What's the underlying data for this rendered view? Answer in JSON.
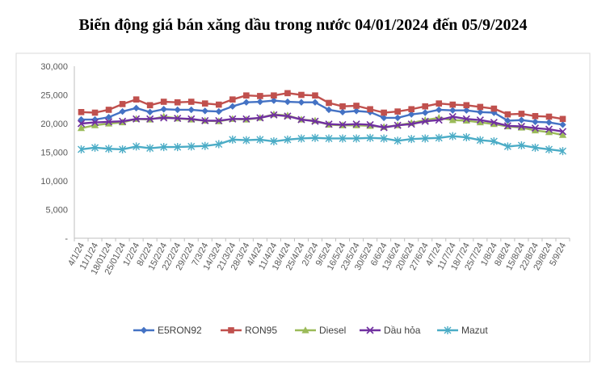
{
  "chart_data": {
    "type": "line",
    "title": "Biến động giá bán xăng dầu trong nước 04/01/2024 đến 05/9/2024",
    "xlabel": "",
    "ylabel": "",
    "ylim": [
      0,
      30000
    ],
    "yticks": [
      0,
      5000,
      10000,
      15000,
      20000,
      25000,
      30000
    ],
    "ytick_labels": [
      "-",
      "5,000",
      "10,000",
      "15,000",
      "20,000",
      "25,000",
      "30,000"
    ],
    "grid": false,
    "legend_position": "bottom",
    "categories": [
      "4/1/24",
      "11/1/24",
      "18/01/24",
      "25/01/24",
      "1/2/24",
      "8/2/24",
      "15/2/24",
      "22/2/24",
      "29/2/24",
      "7/3/24",
      "14/3/24",
      "21/3/24",
      "28/3/24",
      "4/4/24",
      "11/4/24",
      "18/4/24",
      "25/4/24",
      "2/5/24",
      "9/5/24",
      "16/5/24",
      "23/5/24",
      "30/5/24",
      "6/6/24",
      "13/6/24",
      "20/6/24",
      "27/6/24",
      "4/7/24",
      "11/7/24",
      "18/7/24",
      "25/7/24",
      "1/8/24",
      "8/8/24",
      "15/8/24",
      "22/8/24",
      "29/8/24",
      "5/9/24"
    ],
    "tick_labels": [
      "4/1/24",
      "11/1/24",
      "18/01/24",
      "25/01/24",
      "1/2/24",
      "8/2/24",
      "15/2/24",
      "22/2/24",
      "29/2/24",
      "7/3/24",
      "14/3/24",
      "21/3/24",
      "28/3/24",
      "4/4/24",
      "11/4/24",
      "18/4/24",
      "25/4/24",
      "2/5/24",
      "9/5/24",
      "16/5/24",
      "23/5/24",
      "30/5/24",
      "6/6/24",
      "13/6/24",
      "20/6/24",
      "27/6/24",
      "4/7/24",
      "11/7/24",
      "18/7/24",
      "25/7/24",
      "1/8/24",
      "8/8/24",
      "15/8/24",
      "22/8/24",
      "29/8/24",
      "5/9/24"
    ],
    "series": [
      {
        "name": "E5RON92",
        "color": "#4472C4",
        "marker": "diamond",
        "values": [
          20700,
          20700,
          21100,
          22100,
          22700,
          22000,
          22500,
          22400,
          22400,
          22200,
          22100,
          23000,
          23700,
          23800,
          24000,
          23800,
          23700,
          23700,
          22400,
          22000,
          22200,
          22000,
          21000,
          21000,
          21600,
          21900,
          22400,
          22300,
          22300,
          22000,
          21900,
          20500,
          20600,
          20300,
          20200,
          19800
        ]
      },
      {
        "name": "RON95",
        "color": "#C0504D",
        "marker": "square",
        "values": [
          22000,
          21900,
          22400,
          23400,
          24200,
          23200,
          23800,
          23700,
          23800,
          23500,
          23300,
          24200,
          24900,
          24800,
          24900,
          25300,
          25000,
          24900,
          23600,
          23000,
          23100,
          22500,
          21900,
          22100,
          22500,
          23000,
          23500,
          23300,
          23200,
          22900,
          22600,
          21600,
          21700,
          21300,
          21200,
          20800
        ]
      },
      {
        "name": "Diesel",
        "color": "#9BBB59",
        "marker": "triangle",
        "values": [
          19200,
          19700,
          20000,
          20200,
          20800,
          20700,
          21200,
          20900,
          20700,
          20500,
          20400,
          20800,
          20700,
          21000,
          21600,
          21400,
          20700,
          20500,
          19800,
          19700,
          19700,
          19600,
          19400,
          19700,
          20100,
          20600,
          21000,
          20600,
          20500,
          20200,
          19900,
          19500,
          19300,
          18800,
          18500,
          18000
        ]
      },
      {
        "name": "Dầu hỏa",
        "color": "#7030A0",
        "marker": "x",
        "values": [
          20000,
          20200,
          20300,
          20400,
          20800,
          20800,
          21000,
          20900,
          20800,
          20500,
          20500,
          20800,
          20800,
          21000,
          21500,
          21300,
          20700,
          20400,
          19900,
          19800,
          19900,
          19800,
          19300,
          19700,
          19900,
          20400,
          20600,
          21200,
          20800,
          20600,
          20200,
          19600,
          19500,
          19200,
          19000,
          18600
        ]
      },
      {
        "name": "Mazut",
        "color": "#4BACC6",
        "marker": "asterisk",
        "values": [
          15500,
          15800,
          15600,
          15500,
          16000,
          15700,
          15900,
          15900,
          16000,
          16100,
          16400,
          17200,
          17100,
          17200,
          16900,
          17200,
          17400,
          17500,
          17400,
          17400,
          17400,
          17500,
          17400,
          17000,
          17300,
          17400,
          17500,
          17800,
          17600,
          17100,
          16900,
          16000,
          16200,
          15800,
          15500,
          15200
        ]
      }
    ]
  }
}
